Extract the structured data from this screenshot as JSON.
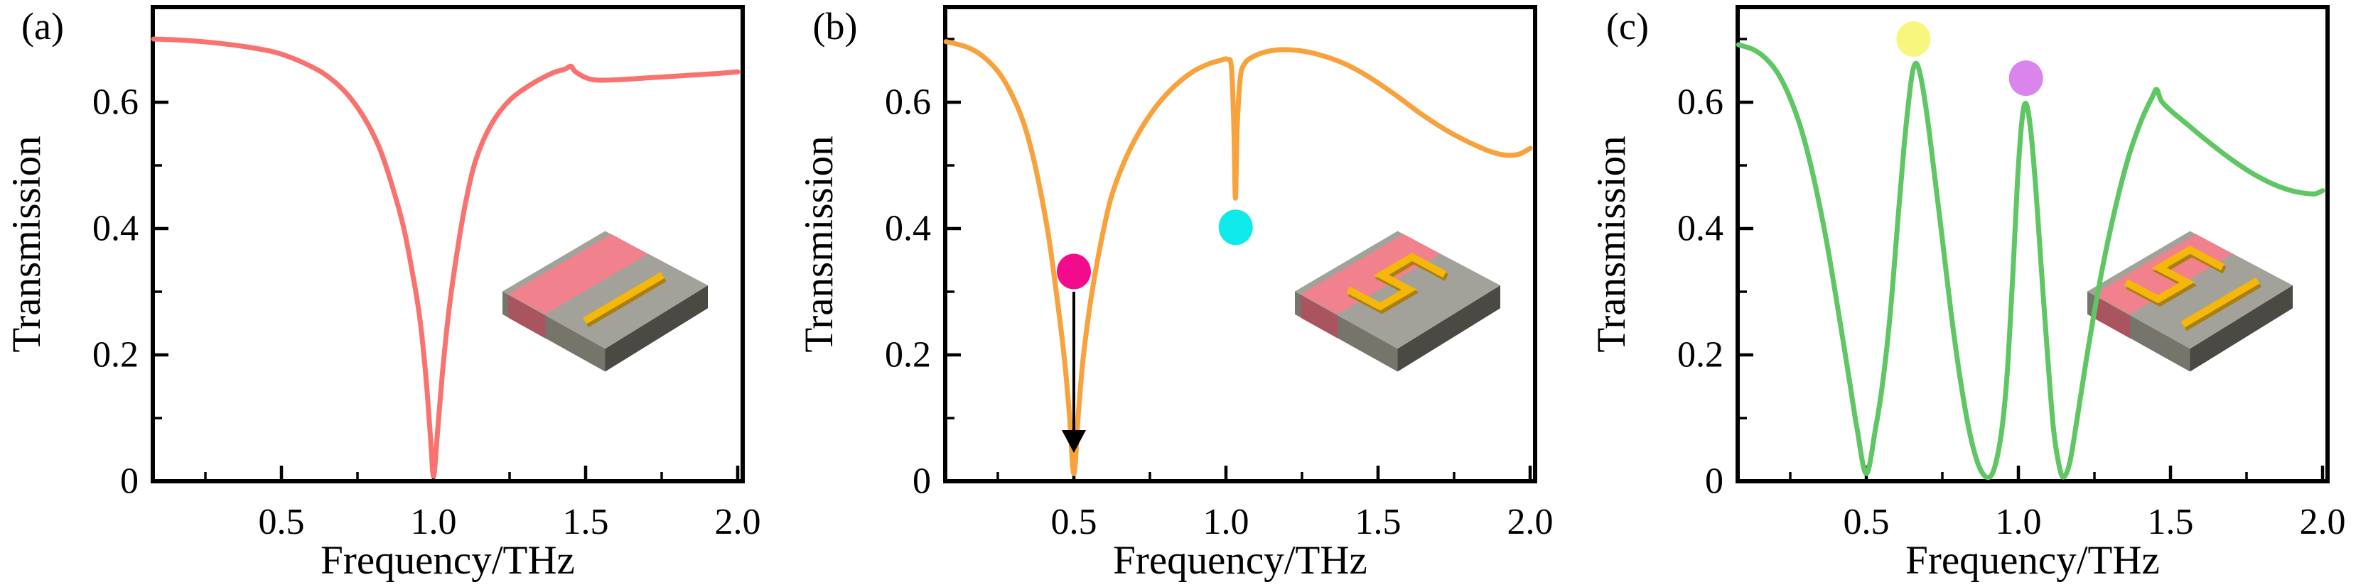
{
  "figure": {
    "background": "#ffffff",
    "panels": [
      {
        "id": "a",
        "label": "(a)",
        "color_key": "salmon",
        "inset": "bar-resonator-chip"
      },
      {
        "id": "b",
        "label": "(b)",
        "color_key": "orange",
        "inset": "s-resonator-chip"
      },
      {
        "id": "c",
        "label": "(c)",
        "color_key": "green",
        "inset": "s-and-bar-resonator-chip"
      }
    ]
  },
  "axes": {
    "xlabel": "Frequency/THz",
    "ylabel": "Transmission",
    "xtick_labels": [
      "0.5",
      "1.0",
      "1.5",
      "2.0"
    ],
    "ytick_labels": [
      "0",
      "0.2",
      "0.4",
      "0.6"
    ],
    "x_major": [
      0.5,
      1.0,
      1.5,
      2.0
    ],
    "x_minor": [
      0.25,
      0.75,
      1.25,
      1.75
    ],
    "y_major": [
      0.2,
      0.4,
      0.6
    ],
    "y_minor": [
      0.1,
      0.3,
      0.5,
      0.7
    ],
    "x_range": [
      0.077,
      2.016
    ],
    "y_range": [
      0,
      0.751
    ],
    "grid": false
  },
  "palette": {
    "salmon": "#f8736f",
    "orange": "#f7a23c",
    "green": "#5ec763",
    "magenta": "#f20c8c",
    "cyan": "#0ee9e9",
    "yellow": "#f9f67e",
    "violet": "#d985ec",
    "black": "#000000",
    "chip_top": "#a3a29a",
    "chip_side_left": "#76756c",
    "chip_side_front": "#4a4943",
    "stripe_top": "#f2818e",
    "stripe_side": "#a9545f",
    "gold": "#f4b70a",
    "gold_dark": "#a97f10"
  },
  "chart_data": [
    {
      "type": "line",
      "panel": "a",
      "title": "",
      "xlabel": "Frequency/THz",
      "ylabel": "Transmission",
      "xlim": [
        0.077,
        2.016
      ],
      "ylim": [
        0,
        0.751
      ],
      "legend": "none",
      "series": [
        {
          "name": "bar resonator transmission",
          "color_key": "salmon",
          "points": [
            [
              0.08,
              0.7
            ],
            [
              0.18,
              0.698
            ],
            [
              0.28,
              0.694
            ],
            [
              0.38,
              0.688
            ],
            [
              0.48,
              0.679
            ],
            [
              0.56,
              0.665
            ],
            [
              0.64,
              0.645
            ],
            [
              0.71,
              0.616
            ],
            [
              0.77,
              0.577
            ],
            [
              0.82,
              0.53
            ],
            [
              0.86,
              0.474
            ],
            [
              0.9,
              0.405
            ],
            [
              0.93,
              0.332
            ],
            [
              0.955,
              0.258
            ],
            [
              0.975,
              0.165
            ],
            [
              0.99,
              0.07
            ],
            [
              1.0,
              0.008
            ],
            [
              1.012,
              0.07
            ],
            [
              1.03,
              0.175
            ],
            [
              1.05,
              0.268
            ],
            [
              1.075,
              0.355
            ],
            [
              1.105,
              0.44
            ],
            [
              1.14,
              0.51
            ],
            [
              1.19,
              0.565
            ],
            [
              1.25,
              0.603
            ],
            [
              1.32,
              0.628
            ],
            [
              1.39,
              0.646
            ],
            [
              1.43,
              0.652
            ],
            [
              1.452,
              0.657
            ],
            [
              1.465,
              0.649
            ],
            [
              1.5,
              0.639
            ],
            [
              1.54,
              0.635
            ],
            [
              1.62,
              0.636
            ],
            [
              1.72,
              0.639
            ],
            [
              1.82,
              0.642
            ],
            [
              1.92,
              0.645
            ],
            [
              2.0,
              0.648
            ]
          ]
        }
      ],
      "markers": [],
      "annotations": [
        {
          "text": "resonance dip at 1.0 THz reaching 0"
        }
      ]
    },
    {
      "type": "line",
      "panel": "b",
      "title": "",
      "xlabel": "Frequency/THz",
      "ylabel": "Transmission",
      "xlim": [
        0.077,
        2.016
      ],
      "ylim": [
        0,
        0.751
      ],
      "legend": "none",
      "series": [
        {
          "name": "S resonator transmission",
          "color_key": "orange",
          "points": [
            [
              0.08,
              0.696
            ],
            [
              0.15,
              0.687
            ],
            [
              0.2,
              0.673
            ],
            [
              0.25,
              0.649
            ],
            [
              0.29,
              0.618
            ],
            [
              0.33,
              0.574
            ],
            [
              0.36,
              0.525
            ],
            [
              0.39,
              0.46
            ],
            [
              0.42,
              0.378
            ],
            [
              0.45,
              0.27
            ],
            [
              0.47,
              0.188
            ],
            [
              0.485,
              0.108
            ],
            [
              0.5,
              0.012
            ],
            [
              0.515,
              0.108
            ],
            [
              0.53,
              0.192
            ],
            [
              0.555,
              0.285
            ],
            [
              0.585,
              0.368
            ],
            [
              0.62,
              0.445
            ],
            [
              0.665,
              0.505
            ],
            [
              0.715,
              0.553
            ],
            [
              0.77,
              0.593
            ],
            [
              0.83,
              0.625
            ],
            [
              0.89,
              0.648
            ],
            [
              0.94,
              0.66
            ],
            [
              0.98,
              0.666
            ],
            [
              1.005,
              0.668
            ],
            [
              1.018,
              0.655
            ],
            [
              1.026,
              0.56
            ],
            [
              1.031,
              0.448
            ],
            [
              1.037,
              0.56
            ],
            [
              1.047,
              0.638
            ],
            [
              1.06,
              0.66
            ],
            [
              1.085,
              0.671
            ],
            [
              1.125,
              0.679
            ],
            [
              1.175,
              0.683
            ],
            [
              1.235,
              0.682
            ],
            [
              1.3,
              0.676
            ],
            [
              1.38,
              0.663
            ],
            [
              1.46,
              0.643
            ],
            [
              1.55,
              0.614
            ],
            [
              1.64,
              0.582
            ],
            [
              1.73,
              0.554
            ],
            [
              1.81,
              0.534
            ],
            [
              1.875,
              0.521
            ],
            [
              1.925,
              0.516
            ],
            [
              1.965,
              0.518
            ],
            [
              2.0,
              0.527
            ]
          ]
        }
      ],
      "markers": [
        {
          "x": 0.5,
          "y": 0.332,
          "color_key": "magenta",
          "name": "magenta-marker"
        },
        {
          "x": 1.032,
          "y": 0.402,
          "color_key": "cyan",
          "name": "cyan-marker"
        }
      ],
      "arrow": {
        "x": 0.5,
        "y_from": 0.3,
        "y_to": 0.045,
        "color_key": "black"
      },
      "annotations": [
        {
          "text": "broad dip at 0.5 THz to 0; narrow dip at ~1.03 THz to ~0.45"
        }
      ]
    },
    {
      "type": "line",
      "panel": "c",
      "title": "",
      "xlabel": "Frequency/THz",
      "ylabel": "Transmission",
      "xlim": [
        0.077,
        2.016
      ],
      "ylim": [
        0,
        0.751
      ],
      "legend": "none",
      "series": [
        {
          "name": "S plus bar resonator transmission",
          "color_key": "green",
          "points": [
            [
              0.08,
              0.691
            ],
            [
              0.13,
              0.683
            ],
            [
              0.17,
              0.669
            ],
            [
              0.21,
              0.645
            ],
            [
              0.25,
              0.606
            ],
            [
              0.29,
              0.551
            ],
            [
              0.33,
              0.474
            ],
            [
              0.37,
              0.378
            ],
            [
              0.41,
              0.263
            ],
            [
              0.445,
              0.158
            ],
            [
              0.47,
              0.082
            ],
            [
              0.5,
              0.012
            ],
            [
              0.53,
              0.082
            ],
            [
              0.555,
              0.16
            ],
            [
              0.58,
              0.272
            ],
            [
              0.605,
              0.42
            ],
            [
              0.625,
              0.535
            ],
            [
              0.643,
              0.617
            ],
            [
              0.655,
              0.654
            ],
            [
              0.667,
              0.66
            ],
            [
              0.682,
              0.633
            ],
            [
              0.7,
              0.578
            ],
            [
              0.722,
              0.494
            ],
            [
              0.75,
              0.383
            ],
            [
              0.78,
              0.262
            ],
            [
              0.81,
              0.158
            ],
            [
              0.842,
              0.072
            ],
            [
              0.872,
              0.022
            ],
            [
              0.9,
              0.006
            ],
            [
              0.922,
              0.022
            ],
            [
              0.945,
              0.08
            ],
            [
              0.963,
              0.17
            ],
            [
              0.982,
              0.33
            ],
            [
              0.997,
              0.475
            ],
            [
              1.012,
              0.572
            ],
            [
              1.025,
              0.598
            ],
            [
              1.04,
              0.558
            ],
            [
              1.057,
              0.465
            ],
            [
              1.075,
              0.34
            ],
            [
              1.095,
              0.205
            ],
            [
              1.115,
              0.085
            ],
            [
              1.135,
              0.022
            ],
            [
              1.15,
              0.007
            ],
            [
              1.17,
              0.032
            ],
            [
              1.195,
              0.105
            ],
            [
              1.23,
              0.212
            ],
            [
              1.27,
              0.322
            ],
            [
              1.315,
              0.425
            ],
            [
              1.36,
              0.51
            ],
            [
              1.405,
              0.572
            ],
            [
              1.44,
              0.608
            ],
            [
              1.455,
              0.62
            ],
            [
              1.47,
              0.602
            ],
            [
              1.505,
              0.585
            ],
            [
              1.56,
              0.563
            ],
            [
              1.62,
              0.539
            ],
            [
              1.69,
              0.513
            ],
            [
              1.76,
              0.49
            ],
            [
              1.83,
              0.472
            ],
            [
              1.89,
              0.461
            ],
            [
              1.94,
              0.456
            ],
            [
              1.975,
              0.455
            ],
            [
              2.0,
              0.46
            ]
          ]
        }
      ],
      "markers": [
        {
          "x": 0.655,
          "y": 0.7,
          "color_key": "yellow",
          "name": "yellow-marker"
        },
        {
          "x": 1.025,
          "y": 0.638,
          "color_key": "violet",
          "name": "violet-marker"
        }
      ],
      "annotations": [
        {
          "text": "dips to 0 at 0.5, 0.9 and 1.14 THz; narrow transparency peak ~1.03 THz"
        }
      ]
    }
  ]
}
